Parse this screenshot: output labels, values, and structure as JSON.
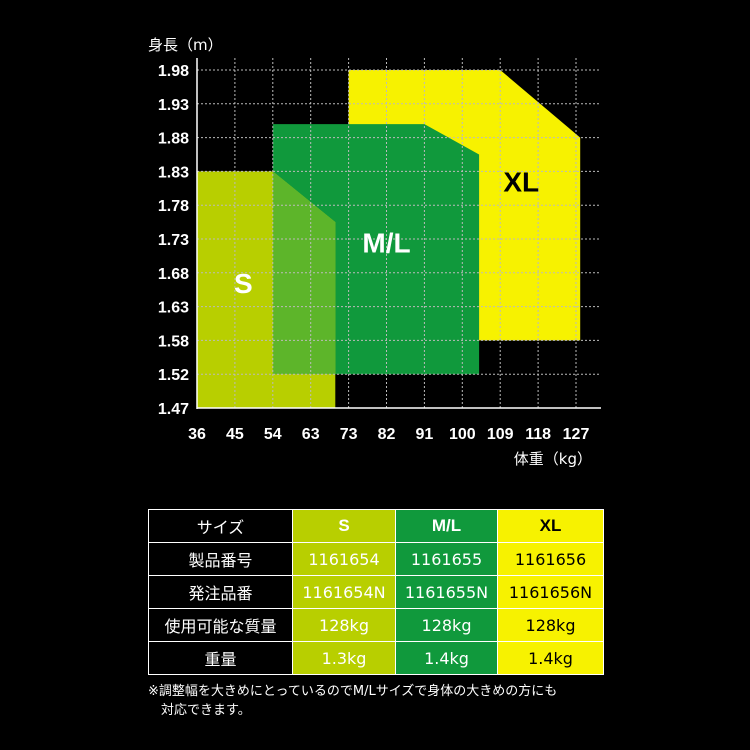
{
  "chart_data": {
    "type": "area",
    "ylabel": "身長（m）",
    "xlabel": "体重（kg）",
    "x_ticks": [
      36,
      45,
      54,
      63,
      73,
      82,
      91,
      100,
      109,
      118,
      127
    ],
    "y_ticks": [
      1.47,
      1.52,
      1.58,
      1.63,
      1.68,
      1.73,
      1.78,
      1.83,
      1.88,
      1.93,
      1.98
    ],
    "grid": true,
    "series": [
      {
        "name": "XL",
        "color": "#f7f200",
        "label_color": "#000000",
        "label_pos": [
          114,
          1.8
        ],
        "polygon": [
          [
            73,
            1.58
          ],
          [
            73,
            1.98
          ],
          [
            109,
            1.98
          ],
          [
            128,
            1.88
          ],
          [
            128,
            1.58
          ]
        ]
      },
      {
        "name": "M/L",
        "color": "#10993c",
        "label_color": "#ffffff",
        "label_pos": [
          82,
          1.71
        ],
        "polygon": [
          [
            54,
            1.52
          ],
          [
            54,
            1.9
          ],
          [
            91,
            1.9
          ],
          [
            104,
            1.855
          ],
          [
            104,
            1.52
          ]
        ]
      },
      {
        "name": "S",
        "color": "#b8cf00",
        "label_color": "#ffffff",
        "label_pos": [
          47,
          1.65
        ],
        "polygon": [
          [
            36,
            1.47
          ],
          [
            36,
            1.83
          ],
          [
            54,
            1.83
          ],
          [
            69.5,
            1.755
          ],
          [
            69.5,
            1.47
          ]
        ]
      }
    ],
    "overlap": {
      "color": "#5db52a",
      "polygon": [
        [
          54,
          1.52
        ],
        [
          54,
          1.83
        ],
        [
          69.5,
          1.755
        ],
        [
          69.5,
          1.52
        ]
      ]
    }
  },
  "table": {
    "headers": [
      "サイズ",
      "S",
      "M/L",
      "XL"
    ],
    "rows": [
      {
        "label": "製品番号",
        "s": "1161654",
        "ml": "1161655",
        "xl": "1161656"
      },
      {
        "label": "発注品番",
        "s": "1161654N",
        "ml": "1161655N",
        "xl": "1161656N"
      },
      {
        "label": "使用可能な質量",
        "s": "128kg",
        "ml": "128kg",
        "xl": "128kg"
      },
      {
        "label": "重量",
        "s": "1.3kg",
        "ml": "1.4kg",
        "xl": "1.4kg"
      }
    ]
  },
  "note": {
    "line1": "※調整幅を大きめにとっているのでM/Lサイズで身体の大きめの方にも",
    "line2": "対応できます。"
  }
}
